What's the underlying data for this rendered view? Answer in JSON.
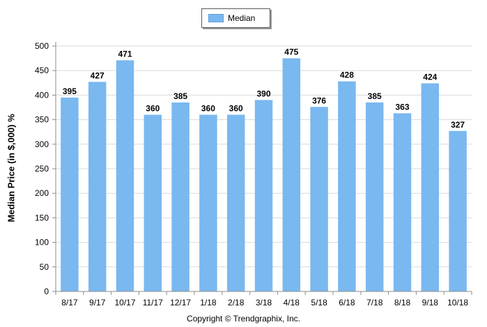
{
  "chart_data": {
    "type": "bar",
    "categories": [
      "8/17",
      "9/17",
      "10/17",
      "11/17",
      "12/17",
      "1/18",
      "2/18",
      "3/18",
      "4/18",
      "5/18",
      "6/18",
      "7/18",
      "8/18",
      "9/18",
      "10/18"
    ],
    "series": [
      {
        "name": "Median",
        "values": [
          395,
          427,
          471,
          360,
          385,
          360,
          360,
          390,
          475,
          376,
          428,
          385,
          363,
          424,
          327
        ]
      }
    ],
    "ylabel": "Median Price (in $,000) %",
    "xlabel": "",
    "ylim": [
      0,
      500
    ],
    "yticks": [
      0,
      50,
      100,
      150,
      200,
      250,
      300,
      350,
      400,
      450,
      500
    ],
    "grid": true,
    "legend": "top-center",
    "bar_color": "#7ab8f0",
    "data_labels": true
  },
  "footer": {
    "copyright": "Copyright © Trendgraphix, Inc."
  }
}
